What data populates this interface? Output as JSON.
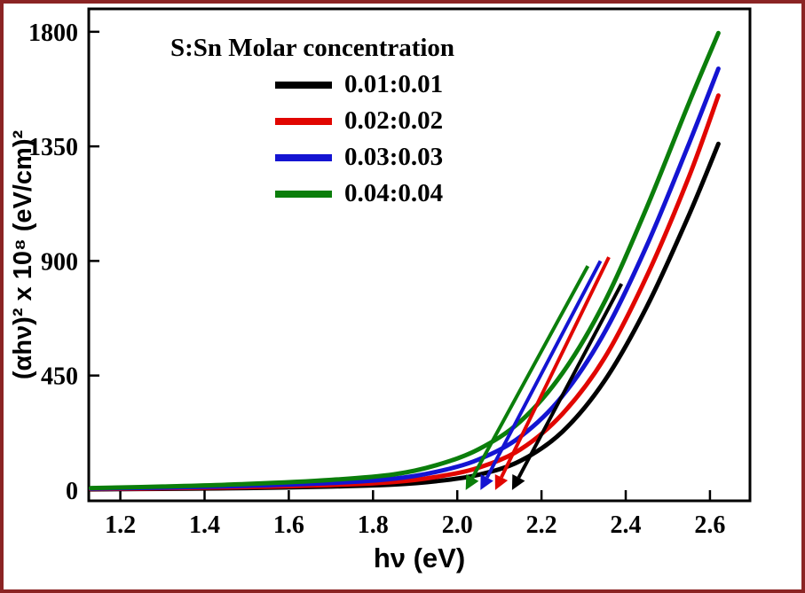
{
  "figure": {
    "border_color": "#8B2424",
    "background": "#FFFFFF"
  },
  "chart_data": {
    "type": "line",
    "title": "",
    "xlabel": "hν (eV)",
    "ylabel": "(αhν)² x 10⁸ (eV/cm)²",
    "xlim": [
      1.12,
      2.7
    ],
    "ylim": [
      0,
      1800
    ],
    "grid": false,
    "legend_position": "upper-left",
    "legend_title": "S:Sn Molar concentration",
    "x_tick_labels": [
      "1.2",
      "1.4",
      "1.6",
      "1.8",
      "2.0",
      "2.2",
      "2.4",
      "2.6"
    ],
    "y_tick_labels": [
      "0",
      "450",
      "900",
      "1350",
      "1800"
    ],
    "x": [
      1.13,
      1.3,
      1.5,
      1.7,
      1.85,
      1.95,
      2.05,
      2.15,
      2.25,
      2.35,
      2.45,
      2.55,
      2.62
    ],
    "series": [
      {
        "name": "0.01:0.01",
        "color": "#000000",
        "y": [
          3,
          5,
          8,
          14,
          22,
          35,
          60,
          115,
          230,
          430,
          720,
          1080,
          1360
        ]
      },
      {
        "name": "0.02:0.02",
        "color": "#E10600",
        "y": [
          4,
          7,
          12,
          20,
          32,
          52,
          88,
          160,
          300,
          520,
          840,
          1230,
          1550
        ]
      },
      {
        "name": "0.03:0.03",
        "color": "#1414D2",
        "y": [
          6,
          10,
          17,
          28,
          45,
          72,
          120,
          210,
          370,
          620,
          960,
          1360,
          1655
        ]
      },
      {
        "name": "0.04:0.04",
        "color": "#0B7E0B",
        "y": [
          8,
          14,
          24,
          40,
          62,
          98,
          160,
          270,
          460,
          740,
          1110,
          1520,
          1795
        ]
      }
    ],
    "band_gap_tangents": [
      {
        "series": "0.01:0.01",
        "color": "#000000",
        "x_intercept_eV": 2.13,
        "line_top": [
          2.39,
          810
        ]
      },
      {
        "series": "0.02:0.02",
        "color": "#E10600",
        "x_intercept_eV": 2.09,
        "line_top": [
          2.36,
          915
        ]
      },
      {
        "series": "0.03:0.03",
        "color": "#1414D2",
        "x_intercept_eV": 2.055,
        "line_top": [
          2.34,
          900
        ]
      },
      {
        "series": "0.04:0.04",
        "color": "#0B7E0B",
        "x_intercept_eV": 2.02,
        "line_top": [
          2.31,
          880
        ]
      }
    ]
  }
}
